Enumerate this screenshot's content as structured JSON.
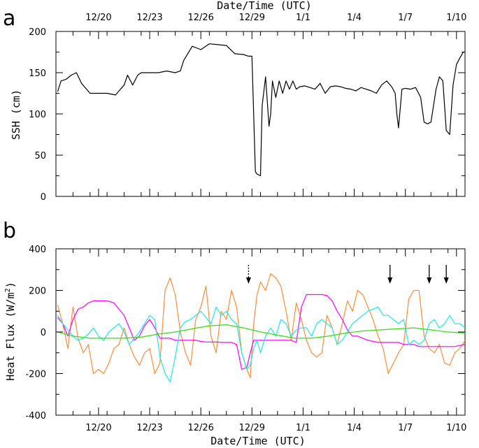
{
  "chart_data": [
    {
      "panel": "a",
      "type": "line",
      "xlabel": "Date/Time (UTC)",
      "ylabel": "SSH (cm)",
      "xlim": [
        0,
        24
      ],
      "ylim": [
        0,
        200
      ],
      "x_ticks": [
        {
          "x": 2.5,
          "label": "12/20"
        },
        {
          "x": 5.5,
          "label": "12/23"
        },
        {
          "x": 8.5,
          "label": "12/26"
        },
        {
          "x": 11.5,
          "label": "12/29"
        },
        {
          "x": 14.5,
          "label": "1/1"
        },
        {
          "x": 17.5,
          "label": "1/4"
        },
        {
          "x": 20.5,
          "label": "1/7"
        },
        {
          "x": 23.5,
          "label": "1/10"
        }
      ],
      "y_ticks": [
        0,
        50,
        100,
        150,
        200
      ],
      "series": [
        {
          "color": "#000000",
          "x": [
            0.1,
            0.3,
            0.6,
            0.9,
            1.2,
            1.5,
            2.0,
            2.5,
            3.0,
            3.5,
            3.7,
            4.0,
            4.2,
            4.5,
            4.8,
            5.0,
            5.5,
            6.0,
            6.5,
            7.0,
            7.3,
            7.5,
            8.0,
            8.5,
            9.0,
            9.5,
            10.0,
            10.5,
            11.0,
            11.3,
            11.5,
            11.7,
            11.8,
            12.0,
            12.1,
            12.3,
            12.5,
            12.6,
            12.7,
            12.9,
            13.1,
            13.3,
            13.5,
            13.7,
            13.9,
            14.1,
            14.3,
            14.6,
            14.9,
            15.2,
            15.5,
            15.8,
            16.1,
            16.4,
            16.7,
            17.0,
            17.3,
            17.6,
            17.9,
            18.2,
            18.5,
            18.8,
            19.1,
            19.4,
            19.7,
            19.9,
            20.0,
            20.1,
            20.3,
            20.5,
            20.8,
            21.1,
            21.4,
            21.6,
            21.8,
            22.0,
            22.3,
            22.5,
            22.7,
            22.9,
            23.1,
            23.3,
            23.5,
            23.7,
            23.9,
            24.0
          ],
          "values": [
            127,
            140,
            142,
            147,
            150,
            137,
            125,
            125,
            125,
            123,
            128,
            135,
            147,
            135,
            147,
            150,
            150,
            150,
            152,
            150,
            152,
            165,
            182,
            178,
            185,
            184,
            183,
            173,
            172,
            170,
            170,
            30,
            27,
            25,
            110,
            145,
            85,
            100,
            140,
            120,
            140,
            125,
            140,
            130,
            140,
            130,
            133,
            134,
            132,
            130,
            137,
            125,
            133,
            134,
            133,
            131,
            130,
            128,
            132,
            130,
            128,
            125,
            135,
            140,
            133,
            125,
            100,
            83,
            130,
            131,
            130,
            132,
            120,
            90,
            88,
            90,
            130,
            145,
            140,
            80,
            75,
            135,
            160,
            168,
            175,
            175
          ]
        }
      ]
    },
    {
      "panel": "b",
      "type": "line",
      "xlabel": "Date/Time (UTC)",
      "ylabel": "Heat Flux (W/m²)",
      "ylabel_parts": {
        "prefix": "Heat Flux (W/m",
        "sup": "2",
        "suffix": ")"
      },
      "xlim": [
        0,
        24
      ],
      "ylim": [
        -400,
        400
      ],
      "x_ticks": [
        {
          "x": 2.5,
          "label": "12/20"
        },
        {
          "x": 5.5,
          "label": "12/23"
        },
        {
          "x": 8.5,
          "label": "12/26"
        },
        {
          "x": 11.5,
          "label": "12/29"
        },
        {
          "x": 14.5,
          "label": "1/1"
        },
        {
          "x": 17.5,
          "label": "1/4"
        },
        {
          "x": 20.5,
          "label": "1/7"
        },
        {
          "x": 23.5,
          "label": "1/10"
        }
      ],
      "y_ticks": [
        -400,
        -200,
        0,
        200,
        400
      ],
      "annotations": [
        {
          "type": "arrow",
          "x": 11.3,
          "style": "dashed"
        },
        {
          "type": "arrow",
          "x": 19.6,
          "style": "solid"
        },
        {
          "type": "arrow",
          "x": 21.9,
          "style": "solid"
        },
        {
          "type": "arrow",
          "x": 22.9,
          "style": "solid"
        }
      ],
      "series": [
        {
          "color": "#ff8c3a",
          "x": [
            0.1,
            0.4,
            0.7,
            1.0,
            1.3,
            1.6,
            1.9,
            2.2,
            2.5,
            2.8,
            3.1,
            3.4,
            3.7,
            4.0,
            4.3,
            4.6,
            4.9,
            5.2,
            5.5,
            5.8,
            6.1,
            6.4,
            6.7,
            7.0,
            7.3,
            7.6,
            7.9,
            8.2,
            8.5,
            8.8,
            9.1,
            9.4,
            9.7,
            10.0,
            10.3,
            10.6,
            10.9,
            11.2,
            11.4,
            11.6,
            11.8,
            12.0,
            12.3,
            12.6,
            12.9,
            13.2,
            13.5,
            13.8,
            14.1,
            14.4,
            14.7,
            15.0,
            15.3,
            15.6,
            15.9,
            16.2,
            16.5,
            16.8,
            17.1,
            17.4,
            17.7,
            18.0,
            18.3,
            18.6,
            18.9,
            19.2,
            19.5,
            19.8,
            20.1,
            20.4,
            20.7,
            21.0,
            21.3,
            21.6,
            21.9,
            22.2,
            22.5,
            22.8,
            23.1,
            23.4,
            23.7,
            24.0
          ],
          "values": [
            130,
            40,
            -80,
            120,
            -30,
            -100,
            -60,
            -200,
            -180,
            -200,
            -150,
            -80,
            -60,
            20,
            -60,
            -120,
            -160,
            -100,
            -80,
            -200,
            -150,
            200,
            260,
            180,
            0,
            -100,
            -160,
            60,
            120,
            220,
            -20,
            -100,
            100,
            60,
            200,
            120,
            -100,
            -180,
            -220,
            40,
            180,
            240,
            200,
            280,
            260,
            220,
            100,
            -40,
            140,
            60,
            -40,
            -100,
            -120,
            -100,
            80,
            20,
            -60,
            40,
            150,
            100,
            200,
            180,
            120,
            60,
            -20,
            -80,
            -200,
            -150,
            -100,
            -60,
            160,
            200,
            200,
            -20,
            -80,
            -100,
            -60,
            -150,
            -160,
            -100,
            -80,
            -40
          ]
        },
        {
          "color": "#ff00ff",
          "x": [
            0.1,
            0.4,
            0.7,
            1.0,
            1.3,
            1.6,
            1.9,
            2.2,
            2.5,
            2.8,
            3.1,
            3.4,
            3.7,
            4.0,
            4.3,
            4.6,
            4.9,
            5.2,
            5.5,
            5.8,
            6.1,
            6.4,
            6.7,
            7.0,
            7.3,
            7.6,
            7.9,
            8.2,
            8.5,
            8.8,
            9.1,
            9.4,
            9.7,
            10.0,
            10.3,
            10.6,
            10.9,
            11.2,
            11.4,
            11.6,
            11.8,
            12.0,
            12.3,
            12.6,
            12.9,
            13.2,
            13.5,
            13.8,
            14.1,
            14.4,
            14.7,
            15.0,
            15.3,
            15.6,
            15.9,
            16.2,
            16.5,
            16.8,
            17.1,
            17.4,
            17.7,
            18.0,
            18.3,
            18.6,
            18.9,
            19.2,
            19.5,
            19.8,
            20.1,
            20.4,
            20.7,
            21.0,
            21.3,
            21.6,
            21.9,
            22.2,
            22.5,
            22.8,
            23.1,
            23.4,
            23.7,
            24.0
          ],
          "values": [
            70,
            40,
            -20,
            60,
            110,
            120,
            140,
            150,
            150,
            150,
            148,
            140,
            110,
            80,
            20,
            -40,
            -20,
            30,
            60,
            20,
            -30,
            -30,
            -30,
            -40,
            -40,
            -40,
            -40,
            -40,
            -45,
            -48,
            -48,
            -48,
            -50,
            -50,
            -50,
            -60,
            -180,
            -170,
            -100,
            -40,
            -40,
            -40,
            -40,
            -40,
            -40,
            -40,
            -40,
            -40,
            -50,
            120,
            180,
            180,
            180,
            180,
            175,
            150,
            100,
            60,
            10,
            -20,
            -20,
            -30,
            -40,
            -45,
            -50,
            -50,
            -50,
            -50,
            -50,
            -60,
            -60,
            -60,
            -70,
            -70,
            -70,
            -70,
            -70,
            -70,
            -70,
            -70,
            -65,
            -60
          ]
        },
        {
          "color": "#22e6e6",
          "x": [
            0.1,
            0.4,
            0.7,
            1.0,
            1.3,
            1.6,
            1.9,
            2.2,
            2.5,
            2.8,
            3.1,
            3.4,
            3.7,
            4.0,
            4.3,
            4.6,
            4.9,
            5.2,
            5.5,
            5.8,
            6.1,
            6.4,
            6.7,
            7.0,
            7.3,
            7.6,
            7.9,
            8.2,
            8.5,
            8.8,
            9.1,
            9.4,
            9.7,
            10.0,
            10.3,
            10.6,
            10.9,
            11.2,
            11.4,
            11.6,
            11.8,
            12.0,
            12.3,
            12.6,
            12.9,
            13.2,
            13.5,
            13.8,
            14.1,
            14.4,
            14.7,
            15.0,
            15.3,
            15.6,
            15.9,
            16.2,
            16.5,
            16.8,
            17.1,
            17.4,
            17.7,
            18.0,
            18.3,
            18.6,
            18.9,
            19.2,
            19.5,
            19.8,
            20.1,
            20.4,
            20.7,
            21.0,
            21.3,
            21.6,
            21.9,
            22.2,
            22.5,
            22.8,
            23.1,
            23.4,
            23.7,
            24.0
          ],
          "values": [
            80,
            40,
            10,
            -20,
            -40,
            -30,
            -10,
            20,
            -20,
            -40,
            0,
            20,
            40,
            0,
            -60,
            -30,
            0,
            40,
            80,
            60,
            -120,
            -200,
            -240,
            -120,
            20,
            50,
            60,
            80,
            100,
            70,
            40,
            120,
            80,
            100,
            60,
            40,
            -100,
            -180,
            -160,
            -80,
            -40,
            -100,
            -20,
            20,
            -20,
            60,
            40,
            -20,
            10,
            20,
            20,
            -20,
            40,
            60,
            40,
            20,
            -60,
            -40,
            0,
            40,
            60,
            80,
            100,
            110,
            120,
            80,
            80,
            60,
            40,
            60,
            -60,
            -40,
            -60,
            -40,
            40,
            60,
            20,
            40,
            80,
            40,
            40,
            20
          ]
        },
        {
          "color": "#33dd11",
          "x": [
            0.1,
            1.0,
            2.0,
            3.0,
            4.0,
            5.0,
            6.0,
            7.0,
            8.0,
            9.0,
            10.0,
            11.0,
            12.0,
            13.0,
            14.0,
            15.0,
            16.0,
            17.0,
            18.0,
            19.0,
            20.0,
            21.0,
            22.0,
            23.0,
            24.0
          ],
          "values": [
            0,
            -20,
            -30,
            -30,
            -30,
            -25,
            -10,
            0,
            15,
            30,
            35,
            20,
            0,
            -15,
            -30,
            -30,
            -20,
            -5,
            5,
            10,
            15,
            20,
            10,
            0,
            -5
          ]
        }
      ]
    }
  ]
}
